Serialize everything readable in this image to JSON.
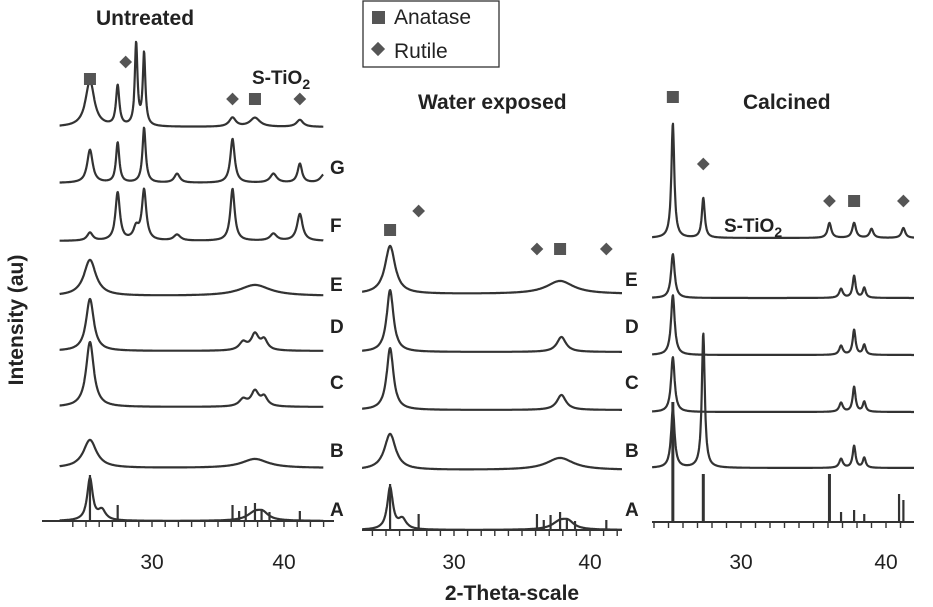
{
  "chart_data": {
    "type": "line",
    "xlabel": "2-Theta-scale",
    "ylabel": "Intensity (au)",
    "legend": {
      "placement": "top-center",
      "entries": [
        {
          "marker": "square",
          "label": "Anatase"
        },
        {
          "marker": "diamond",
          "label": "Rutile"
        }
      ]
    },
    "panels": [
      {
        "title": "Untreated",
        "xlim": [
          23,
          43
        ],
        "xticks": [
          30,
          40
        ],
        "reference_pattern": "S-TiO2",
        "reference_label": [
          "S-TiO",
          "2"
        ],
        "series": [
          "G",
          "F",
          "E",
          "D",
          "C",
          "B",
          "A"
        ],
        "phase_markers": [
          {
            "phase": "Anatase",
            "x": 25.3
          },
          {
            "phase": "Rutile",
            "x": 27.4
          },
          {
            "phase": "Rutile",
            "x": 36.1
          },
          {
            "phase": "Anatase",
            "x": 37.8
          },
          {
            "phase": "Rutile",
            "x": 41.2
          }
        ]
      },
      {
        "title": "Water exposed",
        "xlim": [
          23,
          43
        ],
        "xticks": [
          30,
          40
        ],
        "series": [
          "E",
          "D",
          "C",
          "B",
          "A"
        ],
        "phase_markers": [
          {
            "phase": "Anatase",
            "x": 25.3
          },
          {
            "phase": "Rutile",
            "x": 27.4
          },
          {
            "phase": "Rutile",
            "x": 36.1
          },
          {
            "phase": "Anatase",
            "x": 37.8
          },
          {
            "phase": "Rutile",
            "x": 41.2
          }
        ]
      },
      {
        "title": "Calcined",
        "xlim": [
          23,
          43
        ],
        "xticks": [
          30,
          40
        ],
        "reference_pattern": "S-TiO2",
        "reference_label": [
          "S-TiO",
          "2"
        ],
        "series": [
          "E",
          "D",
          "C",
          "B",
          "A"
        ],
        "phase_markers": [
          {
            "phase": "Anatase",
            "x": 25.3
          },
          {
            "phase": "Rutile",
            "x": 27.4
          },
          {
            "phase": "Rutile",
            "x": 36.1
          },
          {
            "phase": "Anatase",
            "x": 37.8
          },
          {
            "phase": "Rutile",
            "x": 41.2
          }
        ]
      }
    ]
  },
  "colors": {
    "trace": "#333333",
    "marker": "#555555",
    "text": "#222222"
  }
}
